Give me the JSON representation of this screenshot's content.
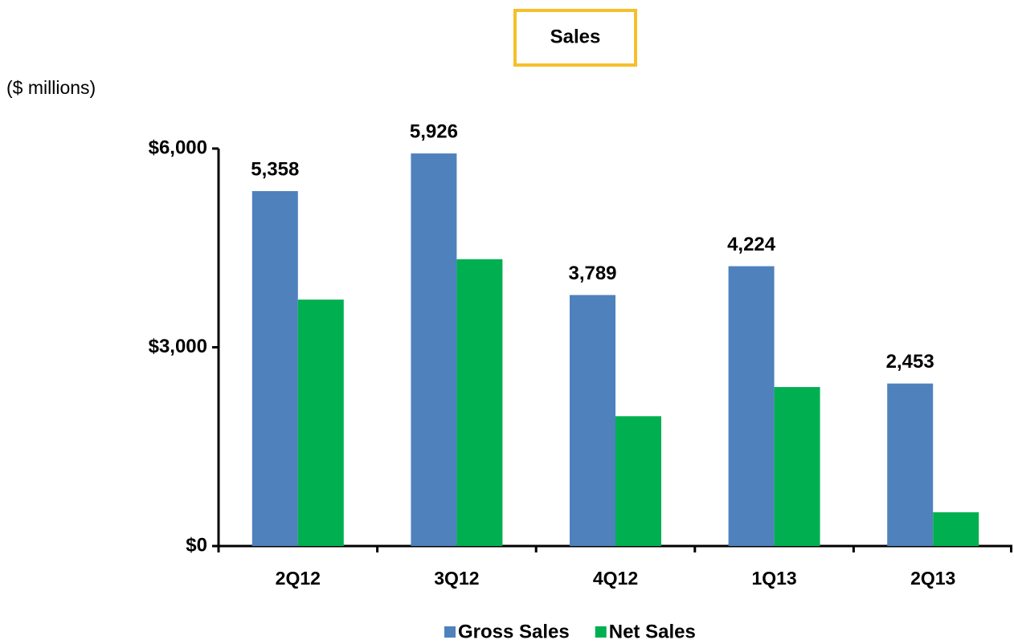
{
  "chart_data": {
    "type": "bar",
    "title": "Sales",
    "subtitle": "($ millions)",
    "categories": [
      "2Q12",
      "3Q12",
      "4Q12",
      "1Q13",
      "2Q13"
    ],
    "series": [
      {
        "name": "Gross Sales",
        "color": "#4f81bd",
        "values": [
          5358,
          5926,
          3789,
          4224,
          2453
        ],
        "value_labels": [
          "5,358",
          "5,926",
          "3,789",
          "4,224",
          "2,453"
        ]
      },
      {
        "name": "Net Sales",
        "color": "#00b050",
        "values": [
          3720,
          4330,
          1960,
          2400,
          510
        ]
      }
    ],
    "ylim": [
      0,
      6000
    ],
    "yticks": [
      {
        "value": 0,
        "label": "$0"
      },
      {
        "value": 3000,
        "label": "$3,000"
      },
      {
        "value": 6000,
        "label": "$6,000"
      }
    ],
    "grid": false,
    "legend": "bottom"
  }
}
